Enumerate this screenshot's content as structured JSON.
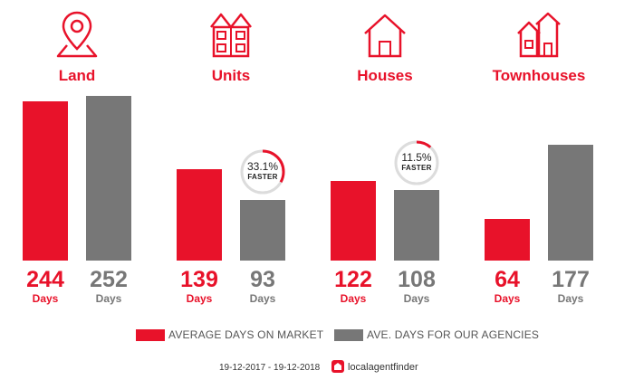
{
  "chart_data": {
    "type": "bar",
    "categories": [
      "Land",
      "Units",
      "Houses",
      "Townhouses"
    ],
    "series": [
      {
        "name": "AVERAGE DAYS ON MARKET",
        "values": [
          244,
          139,
          122,
          64
        ]
      },
      {
        "name": "AVE. DAYS FOR OUR AGENCIES",
        "values": [
          252,
          93,
          108,
          177
        ]
      }
    ],
    "unit_label": "Days",
    "badges": [
      {
        "category": "Units",
        "percent": "33.1%",
        "label": "FASTER",
        "fraction": 0.331
      },
      {
        "category": "Houses",
        "percent": "11.5%",
        "label": "FASTER",
        "fraction": 0.115
      }
    ],
    "colors": {
      "market": "#e8122a",
      "agencies": "#777777"
    },
    "legend_position": "bottom",
    "grid": false
  },
  "icons": [
    "map-pin-icon",
    "apartment-building-icon",
    "house-icon",
    "townhouse-icon"
  ],
  "footer": {
    "date_range": "19-12-2017 - 19-12-2018",
    "brand_name": "localagentfinder"
  }
}
